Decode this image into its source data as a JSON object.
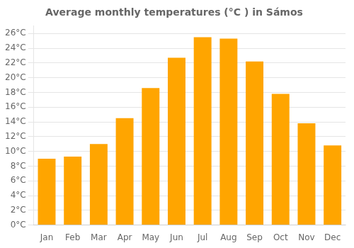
{
  "chart_data": {
    "type": "bar",
    "title": "Average monthly temperatures (°C ) in Sámos",
    "categories": [
      "Jan",
      "Feb",
      "Mar",
      "Apr",
      "May",
      "Jun",
      "Jul",
      "Aug",
      "Sep",
      "Oct",
      "Nov",
      "Dec"
    ],
    "values": [
      9.0,
      9.3,
      11.0,
      14.5,
      18.6,
      22.7,
      25.5,
      25.3,
      22.2,
      17.8,
      13.8,
      10.8
    ],
    "color": "#FFA500",
    "ylim": [
      0,
      27
    ],
    "yticks": [
      {
        "value": 0,
        "label": "0°C"
      },
      {
        "value": 2,
        "label": "2°C"
      },
      {
        "value": 4,
        "label": "4°C"
      },
      {
        "value": 6,
        "label": "6°C"
      },
      {
        "value": 8,
        "label": "8°C"
      },
      {
        "value": 10,
        "label": "10°C"
      },
      {
        "value": 12,
        "label": "12°C"
      },
      {
        "value": 14,
        "label": "14°C"
      },
      {
        "value": 16,
        "label": "16°C"
      },
      {
        "value": 18,
        "label": "18°C"
      },
      {
        "value": 20,
        "label": "20°C"
      },
      {
        "value": 22,
        "label": "22°C"
      },
      {
        "value": 24,
        "label": "24°C"
      },
      {
        "value": 26,
        "label": "26°C"
      }
    ],
    "grid": true
  }
}
